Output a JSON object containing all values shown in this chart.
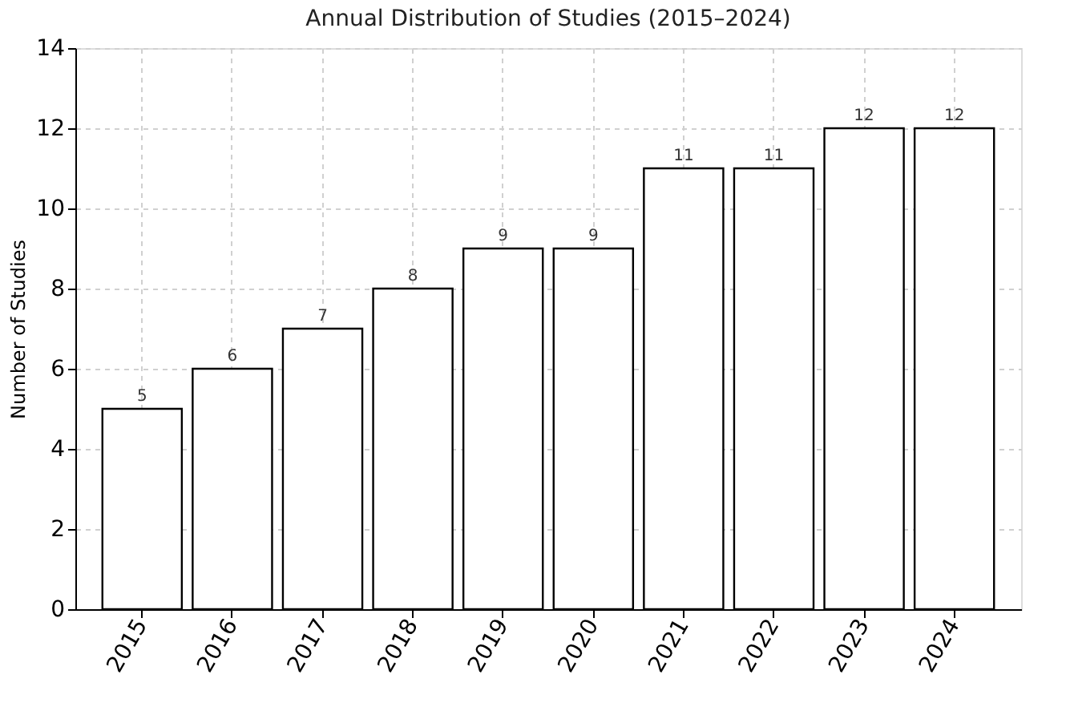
{
  "chart_data": {
    "type": "bar",
    "title": "Annual Distribution of Studies (2015–2024)",
    "ylabel": "Number of Studies",
    "categories": [
      "2015",
      "2016",
      "2017",
      "2018",
      "2019",
      "2020",
      "2021",
      "2022",
      "2023",
      "2024"
    ],
    "values": [
      5,
      6,
      7,
      8,
      9,
      9,
      11,
      11,
      12,
      12
    ],
    "color": "#ffffff",
    "ylim": [
      0,
      14
    ],
    "yticks": [
      0,
      2,
      4,
      6,
      8,
      10,
      12,
      14
    ],
    "grid": true,
    "data_labels": true
  }
}
